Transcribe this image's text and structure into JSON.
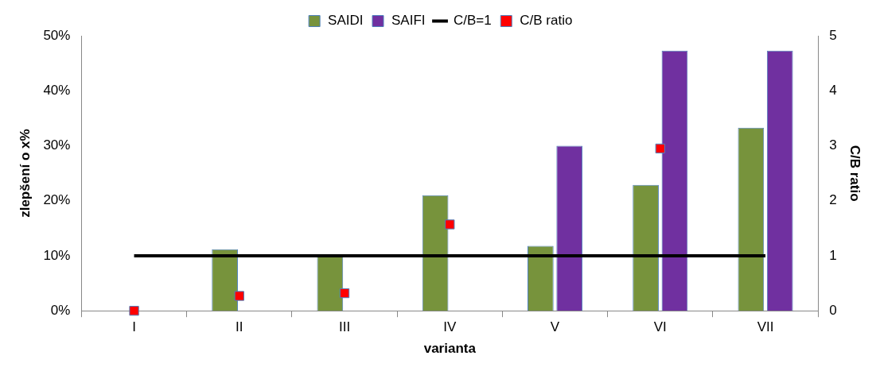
{
  "chart_data": {
    "type": "bar",
    "categories": [
      "I",
      "II",
      "III",
      "IV",
      "V",
      "VI",
      "VII"
    ],
    "xlabel": "varianta",
    "ylabel": "zlepšení o x%",
    "y2label": "C/B ratio",
    "ylim": [
      0,
      50
    ],
    "yticks": [
      {
        "value": 0,
        "label": "0%"
      },
      {
        "value": 10,
        "label": "10%"
      },
      {
        "value": 20,
        "label": "20%"
      },
      {
        "value": 30,
        "label": "30%"
      },
      {
        "value": 40,
        "label": "40%"
      },
      {
        "value": 50,
        "label": "50%"
      }
    ],
    "y2lim": [
      0,
      5
    ],
    "y2ticks": [
      0,
      1,
      2,
      3,
      4,
      5
    ],
    "grid": false,
    "legend": "top",
    "series": [
      {
        "name": "SAIDI",
        "color": "#77933c",
        "values": [
          null,
          11.2,
          10,
          21,
          11.8,
          22.9,
          33.3
        ]
      },
      {
        "name": "SAIFI",
        "color": "#7030a0",
        "values": [
          null,
          null,
          null,
          null,
          30,
          47.3,
          47.3
        ]
      },
      {
        "name": "C/B=1",
        "type": "line",
        "axis": "y2",
        "color": "#000000",
        "marker": "none",
        "values": [
          1,
          1,
          1,
          1,
          1,
          1,
          1
        ]
      },
      {
        "name": "C/B ratio",
        "type": "scatter",
        "axis": "y2",
        "color": "#ff0000",
        "marker": "square",
        "values": [
          0,
          0.27,
          0.32,
          1.57,
          null,
          2.95,
          null
        ]
      }
    ]
  }
}
